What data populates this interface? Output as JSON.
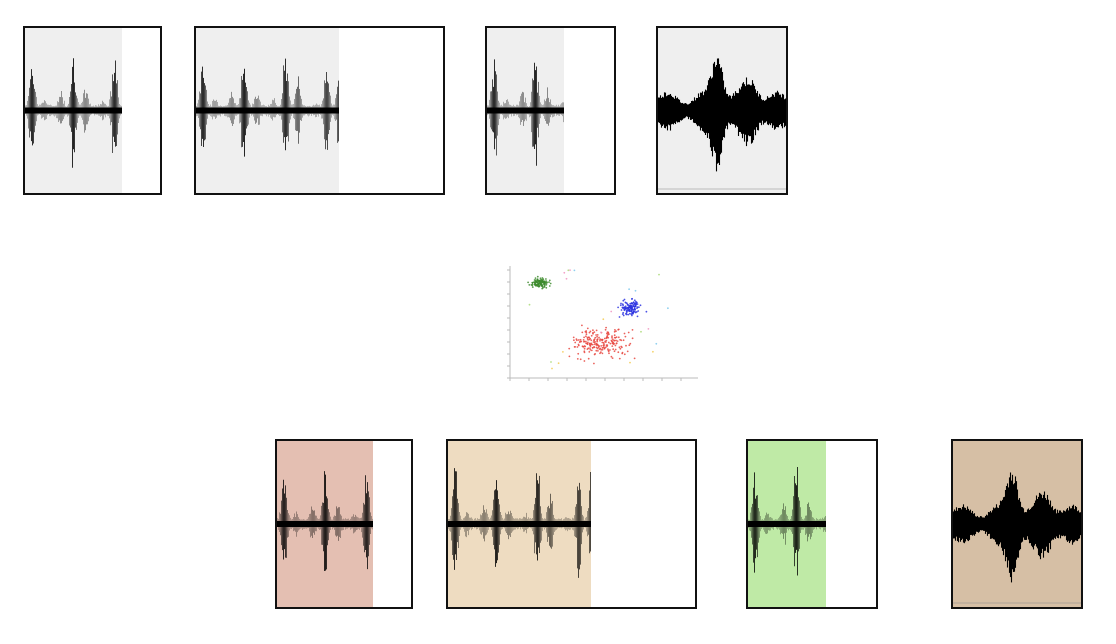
{
  "colors": {
    "background": "#ffffff",
    "panel_border": "#111111",
    "top_fill": "#efefef",
    "waveform": "#000000",
    "bottom_fill_1": "#e4bfb2",
    "bottom_fill_2": "#eedcc1",
    "bottom_fill_3": "#bfeaa6",
    "bottom_fill_4": "#d6bfa5",
    "cluster_green": "#3d8b2e",
    "cluster_blue": "#2d34e0",
    "cluster_red": "#e8473f"
  },
  "rows": {
    "top": {
      "fill_color_key": "top_fill"
    },
    "bottom": {
      "fill_color_keys": [
        "bottom_fill_1",
        "bottom_fill_2",
        "bottom_fill_3",
        "bottom_fill_4"
      ]
    }
  },
  "segments": [
    {
      "fill_fraction": 0.72,
      "style": "spiky"
    },
    {
      "fill_fraction": 0.58,
      "style": "spiky"
    },
    {
      "fill_fraction": 0.61,
      "style": "spiky"
    },
    {
      "fill_fraction": 1.0,
      "style": "dense"
    }
  ],
  "scatter": {
    "clusters": [
      {
        "color_key": "cluster_green",
        "label": ""
      },
      {
        "color_key": "cluster_blue",
        "label": ""
      },
      {
        "color_key": "cluster_red",
        "label": ""
      }
    ]
  }
}
